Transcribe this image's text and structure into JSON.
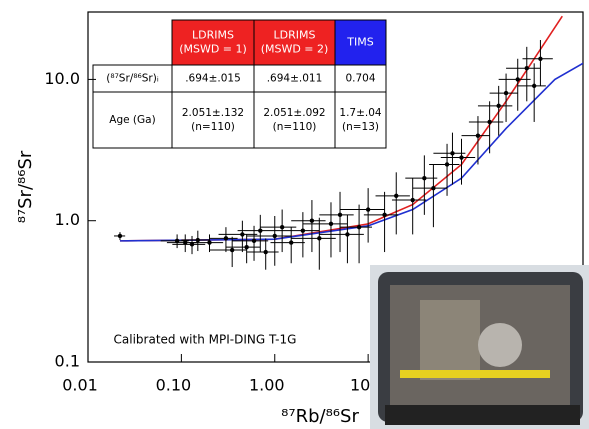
{
  "chart_data": {
    "type": "scatter",
    "xlabel": "⁸⁷Rb/⁸⁶Sr",
    "ylabel": "⁸⁷Sr/⁸⁶Sr",
    "xlim": [
      0.01,
      2000
    ],
    "ylim": [
      0.1,
      30
    ],
    "log_x": true,
    "log_y": true,
    "xticks": [
      {
        "value": 0.01,
        "label": "0.01"
      },
      {
        "value": 0.1,
        "label": "0.10"
      },
      {
        "value": 1,
        "label": "1.00"
      },
      10
    ],
    "yticks": [
      {
        "value": 0.1,
        "label": "0.1"
      },
      {
        "value": 1,
        "label": "1.0"
      },
      {
        "value": 10,
        "label": "10.0"
      }
    ],
    "series": [
      {
        "color": "#000000",
        "x": [
          0.022,
          0.09,
          0.11,
          0.13,
          0.15,
          0.2,
          0.3,
          0.35,
          0.45,
          0.5,
          0.6,
          0.7,
          0.8,
          1.0,
          1.2,
          1.5,
          2,
          2.5,
          3,
          4,
          5,
          6,
          8,
          10,
          15,
          20,
          30,
          40,
          50,
          70,
          80,
          100,
          150,
          200,
          250,
          300,
          400,
          500,
          600,
          700
        ],
        "values": [
          0.78,
          0.72,
          0.7,
          0.68,
          0.73,
          0.7,
          0.75,
          0.62,
          0.8,
          0.65,
          0.72,
          0.85,
          0.6,
          0.78,
          0.9,
          0.7,
          0.85,
          1.0,
          0.75,
          0.95,
          1.1,
          0.8,
          0.9,
          1.2,
          1.1,
          1.5,
          1.4,
          2.0,
          1.7,
          2.5,
          3.0,
          2.8,
          4.0,
          5.0,
          6.5,
          8,
          10,
          12,
          9,
          14
        ],
        "xerr": [
          0.003,
          0.03,
          0.04,
          0.05,
          0.05,
          0.08,
          0.1,
          0.15,
          0.2,
          0.2,
          0.25,
          0.3,
          0.3,
          0.5,
          0.5,
          0.6,
          1,
          1,
          1.5,
          2,
          2,
          3,
          3,
          5,
          6,
          8,
          12,
          15,
          20,
          25,
          30,
          40,
          50,
          80,
          100,
          100,
          150,
          200,
          200,
          250
        ],
        "yerr": [
          0.05,
          0.08,
          0.1,
          0.1,
          0.12,
          0.1,
          0.15,
          0.15,
          0.2,
          0.15,
          0.2,
          0.25,
          0.15,
          0.3,
          0.3,
          0.2,
          0.3,
          0.4,
          0.3,
          0.4,
          0.5,
          0.3,
          0.4,
          0.5,
          0.5,
          0.7,
          0.6,
          0.9,
          0.8,
          1.0,
          1.2,
          1.0,
          1.5,
          2.0,
          2.5,
          3,
          4,
          5,
          4,
          5
        ]
      }
    ],
    "fits": [
      {
        "color": "#e02020",
        "x": [
          0.022,
          1,
          10,
          30,
          100,
          300,
          600,
          1200
        ],
        "values": [
          0.72,
          0.74,
          0.95,
          1.3,
          2.5,
          7,
          14,
          28
        ]
      },
      {
        "color": "#2030d0",
        "x": [
          0.022,
          1,
          10,
          30,
          100,
          300,
          1000,
          2000
        ],
        "values": [
          0.72,
          0.74,
          0.92,
          1.2,
          2.0,
          4.5,
          10,
          13
        ]
      }
    ],
    "annotation": "Calibrated with MPI-DING T-1G",
    "table": {
      "header": [
        {
          "lines": [
            "LDRIMS",
            "(MSWD = 1)"
          ],
          "color": "#ee2222"
        },
        {
          "lines": [
            "LDRIMS",
            "(MSWD = 2)"
          ],
          "color": "#ee2222"
        },
        {
          "lines": [
            "TIMS"
          ],
          "color": "#2222ee"
        }
      ],
      "rows": [
        [
          [
            "(⁸⁷Sr/⁸⁶Sr)ᵢ"
          ],
          [
            ".694±.015"
          ],
          [
            ".694±.011"
          ],
          [
            "0.704"
          ]
        ],
        [
          [
            "Age (Ga)"
          ],
          [
            "2.051±.132",
            "(n=110)"
          ],
          [
            "2.051±.092",
            "(n=110)"
          ],
          [
            "1.7±.04",
            "(n=13)"
          ]
        ]
      ]
    }
  }
}
